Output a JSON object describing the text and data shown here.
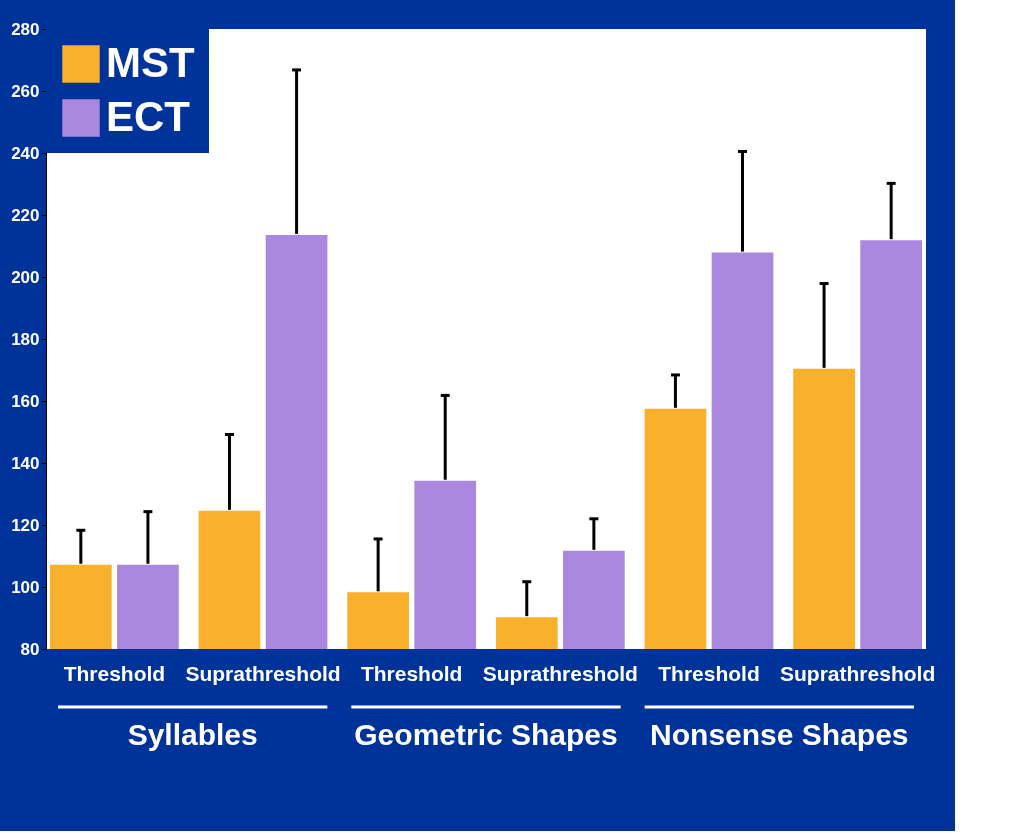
{
  "chart_data": {
    "type": "bar",
    "categories": [
      "Threshold",
      "Suprathreshold",
      "Threshold",
      "Suprathreshold",
      "Threshold",
      "Suprathreshold"
    ],
    "annotations": [
      "Syllables",
      "Geometric Shapes",
      "Nonsense Shapes"
    ],
    "series": [
      {
        "name": "MST",
        "color": "#f9b02c",
        "values": [
          107.5,
          124.9,
          98.6,
          90.6,
          157.8,
          170.7
        ],
        "errors": [
          [
            107.5,
            118.3
          ],
          [
            124.9,
            149.2
          ],
          [
            98.6,
            115.5
          ],
          [
            90.6,
            101.7
          ],
          [
            157.8,
            168.4
          ],
          [
            170.7,
            197.9
          ]
        ]
      },
      {
        "name": "ECT",
        "color": "#aa88e0",
        "values": [
          107.5,
          213.9,
          134.6,
          112,
          208.2,
          212.2
        ],
        "errors": [
          [
            107.5,
            124.3
          ],
          [
            213.9,
            266.8
          ],
          [
            134.6,
            161.8
          ],
          [
            112,
            122
          ],
          [
            208.2,
            240.5
          ],
          [
            212.2,
            230.2
          ]
        ]
      }
    ],
    "ylim": [
      80,
      280
    ],
    "yticks": [
      80,
      100,
      120,
      140,
      160,
      180,
      200,
      220,
      240,
      260,
      280
    ],
    "grid": false,
    "legend": "top left"
  }
}
